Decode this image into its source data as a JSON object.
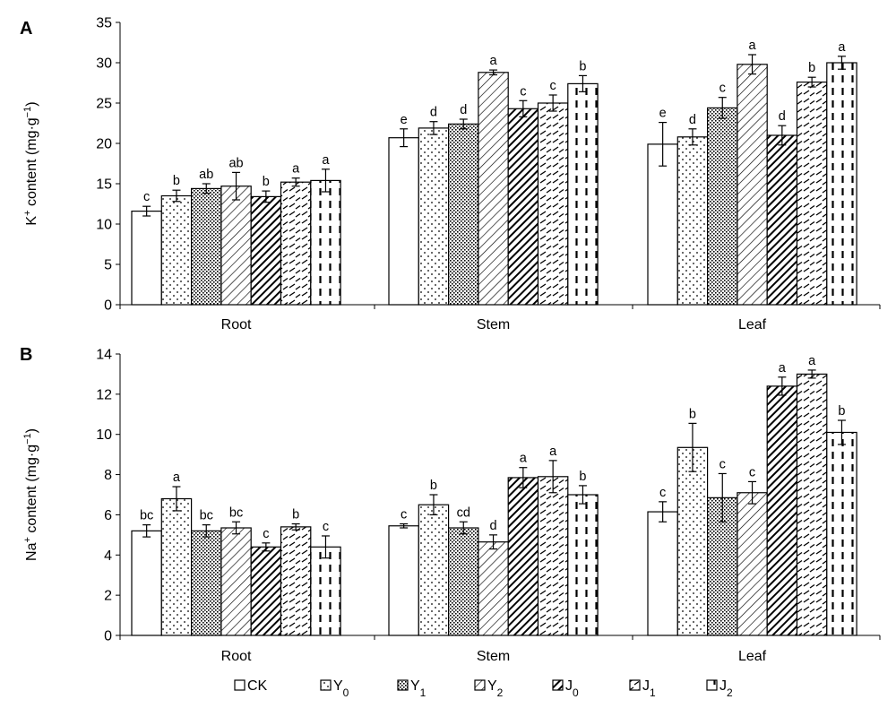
{
  "legend": {
    "items": [
      {
        "main": "CK",
        "sub": ""
      },
      {
        "main": "Y",
        "sub": "0"
      },
      {
        "main": "Y",
        "sub": "1"
      },
      {
        "main": "Y",
        "sub": "2"
      },
      {
        "main": "J",
        "sub": "0"
      },
      {
        "main": "J",
        "sub": "1"
      },
      {
        "main": "J",
        "sub": "2"
      }
    ]
  },
  "chart_data": [
    {
      "type": "bar",
      "panel": "A",
      "ylabel_main": "K",
      "ylabel_sup": "+",
      "ylabel_mid": " content (mg·g",
      "ylabel_sup2": "−1",
      "ylabel_end": ")",
      "ylim": [
        0,
        35
      ],
      "yticks": [
        0,
        5,
        10,
        15,
        20,
        25,
        30,
        35
      ],
      "categories": [
        "Root",
        "Stem",
        "Leaf"
      ],
      "grid": false,
      "series": [
        {
          "name": "CK",
          "values": [
            11.6,
            20.7,
            19.9
          ],
          "errors": [
            0.6,
            1.1,
            2.7
          ],
          "letters": [
            "c",
            "e",
            "e"
          ]
        },
        {
          "name": "Y0",
          "values": [
            13.5,
            21.9,
            20.8
          ],
          "errors": [
            0.7,
            0.8,
            1.0
          ],
          "letters": [
            "b",
            "d",
            "d"
          ]
        },
        {
          "name": "Y1",
          "values": [
            14.4,
            22.4,
            24.4
          ],
          "errors": [
            0.6,
            0.6,
            1.3
          ],
          "letters": [
            "ab",
            "d",
            "c"
          ]
        },
        {
          "name": "Y2",
          "values": [
            14.7,
            28.8,
            29.8
          ],
          "errors": [
            1.7,
            0.3,
            1.2
          ],
          "letters": [
            "ab",
            "a",
            "a"
          ]
        },
        {
          "name": "J0",
          "values": [
            13.4,
            24.3,
            21.0
          ],
          "errors": [
            0.7,
            1.0,
            1.2
          ],
          "letters": [
            "b",
            "c",
            "d"
          ]
        },
        {
          "name": "J1",
          "values": [
            15.2,
            25.0,
            27.6
          ],
          "errors": [
            0.5,
            1.0,
            0.6
          ],
          "letters": [
            "a",
            "c",
            "b"
          ]
        },
        {
          "name": "J2",
          "values": [
            15.4,
            27.4,
            30.0
          ],
          "errors": [
            1.4,
            1.0,
            0.8
          ],
          "letters": [
            "a",
            "b",
            "a"
          ]
        }
      ]
    },
    {
      "type": "bar",
      "panel": "B",
      "ylabel_main": "Na",
      "ylabel_sup": "+",
      "ylabel_mid": " content (mg·g",
      "ylabel_sup2": "−1",
      "ylabel_end": ")",
      "ylim": [
        0,
        14
      ],
      "yticks": [
        0,
        2,
        4,
        6,
        8,
        10,
        12,
        14
      ],
      "categories": [
        "Root",
        "Stem",
        "Leaf"
      ],
      "grid": false,
      "series": [
        {
          "name": "CK",
          "values": [
            5.2,
            5.45,
            6.15
          ],
          "errors": [
            0.3,
            0.1,
            0.5
          ],
          "letters": [
            "bc",
            "c",
            "c"
          ]
        },
        {
          "name": "Y0",
          "values": [
            6.8,
            6.5,
            9.35
          ],
          "errors": [
            0.6,
            0.5,
            1.2
          ],
          "letters": [
            "a",
            "b",
            "b"
          ]
        },
        {
          "name": "Y1",
          "values": [
            5.2,
            5.35,
            6.85
          ],
          "errors": [
            0.3,
            0.3,
            1.2
          ],
          "letters": [
            "bc",
            "cd",
            "c"
          ]
        },
        {
          "name": "Y2",
          "values": [
            5.35,
            4.65,
            7.1
          ],
          "errors": [
            0.3,
            0.35,
            0.55
          ],
          "letters": [
            "bc",
            "d",
            "c"
          ]
        },
        {
          "name": "J0",
          "values": [
            4.4,
            7.85,
            12.4
          ],
          "errors": [
            0.2,
            0.5,
            0.45
          ],
          "letters": [
            "c",
            "a",
            "a"
          ]
        },
        {
          "name": "J1",
          "values": [
            5.4,
            7.9,
            13.0
          ],
          "errors": [
            0.15,
            0.8,
            0.2
          ],
          "letters": [
            "b",
            "a",
            "a"
          ]
        },
        {
          "name": "J2",
          "values": [
            4.4,
            7.0,
            10.1
          ],
          "errors": [
            0.55,
            0.45,
            0.6
          ],
          "letters": [
            "c",
            "b",
            "b"
          ]
        }
      ]
    }
  ]
}
